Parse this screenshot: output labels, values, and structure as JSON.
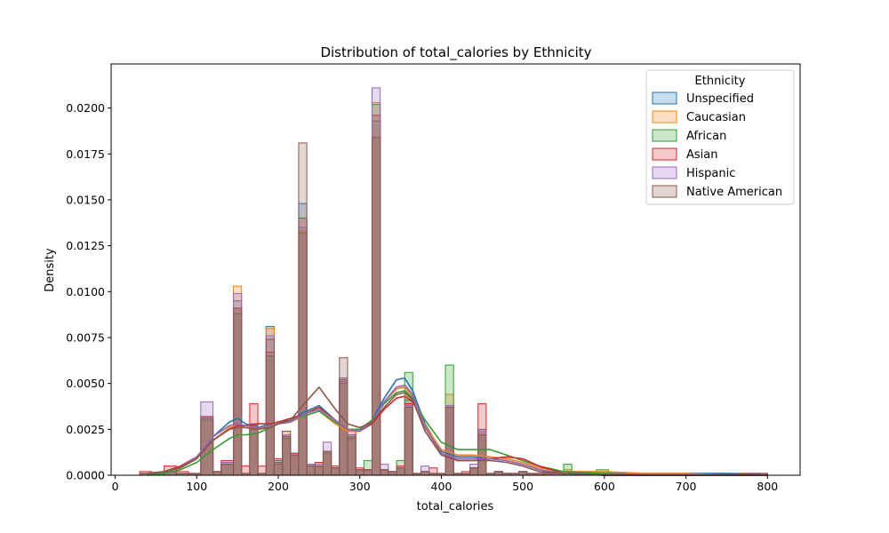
{
  "chart_data": {
    "type": "histogram",
    "title": "Distribution of total_calories by Ethnicity",
    "xlabel": "total_calories",
    "ylabel": "Density",
    "xlim": [
      -5,
      840
    ],
    "ylim": [
      0,
      0.0224
    ],
    "xticks": [
      0,
      100,
      200,
      300,
      400,
      500,
      600,
      700,
      800
    ],
    "yticks": [
      0.0,
      0.0025,
      0.005,
      0.0075,
      0.01,
      0.0125,
      0.015,
      0.0175,
      0.02
    ],
    "ytick_labels": [
      "0.0000",
      "0.0025",
      "0.0050",
      "0.0075",
      "0.0100",
      "0.0125",
      "0.0150",
      "0.0175",
      "0.0200"
    ],
    "legend_title": "Ethnicity",
    "legend_position": "top-right",
    "grid": false,
    "bin_edges": [
      30,
      45,
      60,
      75,
      90,
      105,
      120,
      130,
      145,
      155,
      165,
      175,
      185,
      195,
      205,
      215,
      225,
      235,
      245,
      255,
      265,
      275,
      285,
      295,
      305,
      315,
      325,
      335,
      345,
      355,
      365,
      375,
      385,
      395,
      405,
      415,
      425,
      435,
      445,
      455,
      465,
      475,
      485,
      495,
      505,
      525,
      550,
      560,
      590,
      605,
      640,
      650,
      790,
      800
    ],
    "series": [
      {
        "name": "Unspecified",
        "color": "#1f77b4",
        "values": [
          0.0001,
          0.0001,
          0.0002,
          0.0001,
          0.0001,
          0.0032,
          0.0002,
          0.0007,
          0.0095,
          0.0001,
          0.0028,
          0.0001,
          0.0081,
          0.0008,
          0.0022,
          0.0012,
          0.0148,
          0.0006,
          0.0005,
          0.0013,
          0.0004,
          0.0053,
          0.0022,
          0.0003,
          0.0003,
          0.0193,
          0.0003,
          0.0002,
          0.0004,
          0.0041,
          0.0001,
          0.0002,
          0.0001,
          0.0001,
          0.0038,
          0.0001,
          0.0001,
          0.0004,
          0.0025,
          0.0001,
          0.0002,
          0.0001,
          0.0001,
          0.0002,
          0.0001,
          0.0001,
          0.0001,
          0.0001,
          0.0001,
          0.0001,
          0.0001,
          0.0001,
          0.0001
        ],
        "kde_x": [
          40,
          60,
          80,
          100,
          120,
          140,
          150,
          160,
          175,
          190,
          200,
          215,
          230,
          250,
          270,
          285,
          300,
          315,
          330,
          345,
          355,
          365,
          380,
          400,
          420,
          440,
          460,
          480,
          500,
          520,
          550,
          600,
          650,
          700,
          750,
          800
        ],
        "kde_y": [
          0.0001,
          0.0002,
          0.0004,
          0.0009,
          0.0021,
          0.0029,
          0.0031,
          0.0028,
          0.0026,
          0.0028,
          0.0029,
          0.003,
          0.0034,
          0.0038,
          0.003,
          0.0025,
          0.0025,
          0.003,
          0.0042,
          0.0052,
          0.0053,
          0.0046,
          0.0028,
          0.0013,
          0.001,
          0.001,
          0.0009,
          0.0008,
          0.0006,
          0.0003,
          0.0001,
          0.0001,
          0.0001,
          0.0001,
          0.0001,
          0.0
        ]
      },
      {
        "name": "Caucasian",
        "color": "#ff7f0e",
        "values": [
          0.0001,
          0.0001,
          0.0002,
          0.0001,
          0.0001,
          0.0031,
          0.0002,
          0.0006,
          0.0103,
          0.0001,
          0.0026,
          0.0001,
          0.008,
          0.0006,
          0.0021,
          0.0011,
          0.0133,
          0.0005,
          0.0005,
          0.0012,
          0.0004,
          0.0051,
          0.0021,
          0.0003,
          0.0003,
          0.0203,
          0.0003,
          0.0002,
          0.0004,
          0.0043,
          0.0001,
          0.0002,
          0.0001,
          0.0001,
          0.0044,
          0.0001,
          0.0001,
          0.0004,
          0.0023,
          0.0001,
          0.0002,
          0.0001,
          0.0001,
          0.0002,
          0.0001,
          0.0001,
          0.0003,
          0.0001,
          0.0002,
          0.0001,
          0.0001,
          0.0001,
          0.0001
        ],
        "kde_x": [
          40,
          60,
          80,
          100,
          120,
          140,
          150,
          160,
          175,
          190,
          200,
          215,
          230,
          250,
          270,
          285,
          300,
          315,
          330,
          345,
          355,
          365,
          380,
          400,
          420,
          440,
          460,
          480,
          500,
          520,
          550,
          600,
          650,
          700,
          750,
          800
        ],
        "kde_y": [
          0.0001,
          0.0002,
          0.0004,
          0.0009,
          0.0019,
          0.0026,
          0.0027,
          0.0026,
          0.0025,
          0.0027,
          0.0028,
          0.0029,
          0.0032,
          0.0035,
          0.0028,
          0.0024,
          0.0024,
          0.0029,
          0.004,
          0.0047,
          0.0048,
          0.0043,
          0.0027,
          0.0014,
          0.0011,
          0.0011,
          0.001,
          0.0009,
          0.0007,
          0.0004,
          0.0002,
          0.0002,
          0.0001,
          0.0001,
          0.0,
          0.0
        ]
      },
      {
        "name": "African",
        "color": "#2ca02c",
        "values": [
          0.0001,
          0.0001,
          0.0002,
          0.0001,
          0.0001,
          0.003,
          0.0002,
          0.0006,
          0.0088,
          0.0001,
          0.0025,
          0.0001,
          0.0065,
          0.0006,
          0.002,
          0.0011,
          0.0132,
          0.0005,
          0.0005,
          0.0012,
          0.0004,
          0.005,
          0.002,
          0.0003,
          0.0008,
          0.0202,
          0.0003,
          0.0002,
          0.0008,
          0.0056,
          0.0001,
          0.0002,
          0.0001,
          0.0001,
          0.006,
          0.0001,
          0.0001,
          0.0004,
          0.0022,
          0.0001,
          0.0002,
          0.0001,
          0.0001,
          0.0002,
          0.0001,
          0.0001,
          0.0006,
          0.0001,
          0.0003,
          0.0001,
          0.0001,
          0.0001,
          0.0001
        ],
        "kde_x": [
          40,
          60,
          80,
          100,
          120,
          140,
          150,
          160,
          175,
          190,
          200,
          215,
          230,
          250,
          270,
          285,
          300,
          315,
          330,
          345,
          355,
          365,
          380,
          400,
          420,
          440,
          460,
          480,
          500,
          520,
          550,
          600,
          650,
          700,
          750,
          800
        ],
        "kde_y": [
          0.0,
          0.0001,
          0.0003,
          0.0007,
          0.0014,
          0.002,
          0.0022,
          0.0022,
          0.0023,
          0.0026,
          0.0028,
          0.003,
          0.0032,
          0.0035,
          0.0029,
          0.0025,
          0.0025,
          0.003,
          0.0039,
          0.0045,
          0.0046,
          0.0042,
          0.003,
          0.0018,
          0.0014,
          0.0014,
          0.0014,
          0.0011,
          0.0008,
          0.0005,
          0.0002,
          0.0001,
          0.0,
          0.0,
          0.0,
          0.0
        ]
      },
      {
        "name": "Asian",
        "color": "#d62728",
        "values": [
          0.0002,
          0.0001,
          0.0005,
          0.0002,
          0.0001,
          0.0032,
          0.0002,
          0.0008,
          0.0091,
          0.0005,
          0.0039,
          0.0005,
          0.0067,
          0.0009,
          0.0024,
          0.0012,
          0.014,
          0.0006,
          0.0007,
          0.0013,
          0.0005,
          0.0052,
          0.0024,
          0.0004,
          0.0003,
          0.0196,
          0.0003,
          0.0002,
          0.0005,
          0.0039,
          0.0001,
          0.0002,
          0.0004,
          0.0001,
          0.0037,
          0.0001,
          0.0002,
          0.0004,
          0.0039,
          0.0001,
          0.0002,
          0.0001,
          0.0001,
          0.0002,
          0.0001,
          0.0001,
          0.0001,
          0.0001,
          0.0001,
          0.0001,
          0.0001,
          0.0001,
          0.0001
        ],
        "kde_x": [
          40,
          60,
          80,
          100,
          120,
          140,
          150,
          160,
          175,
          190,
          200,
          215,
          230,
          250,
          270,
          285,
          300,
          315,
          330,
          345,
          355,
          365,
          380,
          400,
          420,
          440,
          460,
          480,
          500,
          520,
          550,
          600,
          650,
          700,
          750,
          800
        ],
        "kde_y": [
          0.0001,
          0.0002,
          0.0005,
          0.001,
          0.0019,
          0.0025,
          0.0027,
          0.0027,
          0.0028,
          0.0028,
          0.0029,
          0.0031,
          0.0033,
          0.0037,
          0.003,
          0.0025,
          0.0024,
          0.0028,
          0.0036,
          0.0042,
          0.0043,
          0.004,
          0.0026,
          0.0012,
          0.0008,
          0.0008,
          0.0009,
          0.001,
          0.0009,
          0.0005,
          0.0001,
          0.0,
          0.0,
          0.0,
          0.0,
          0.0
        ]
      },
      {
        "name": "Hispanic",
        "color": "#9467bd",
        "values": [
          0.0001,
          0.0001,
          0.0002,
          0.0001,
          0.0001,
          0.004,
          0.0002,
          0.0007,
          0.0099,
          0.0001,
          0.0028,
          0.0001,
          0.0076,
          0.0007,
          0.0022,
          0.0011,
          0.0135,
          0.0006,
          0.0006,
          0.0018,
          0.0004,
          0.0051,
          0.0021,
          0.0003,
          0.0003,
          0.0211,
          0.0006,
          0.0002,
          0.0004,
          0.0038,
          0.0001,
          0.0005,
          0.0001,
          0.0001,
          0.0038,
          0.0001,
          0.0001,
          0.0006,
          0.0024,
          0.0001,
          0.0002,
          0.0001,
          0.0001,
          0.0002,
          0.0001,
          0.0001,
          0.0001,
          0.0001,
          0.0001,
          0.0001,
          0.0001,
          0.0001,
          0.0001
        ],
        "kde_x": [
          40,
          60,
          80,
          100,
          120,
          140,
          150,
          160,
          175,
          190,
          200,
          215,
          230,
          250,
          270,
          285,
          300,
          315,
          330,
          345,
          355,
          365,
          380,
          400,
          420,
          440,
          460,
          480,
          500,
          520,
          550,
          600,
          650,
          700,
          750,
          800
        ],
        "kde_y": [
          0.0001,
          0.0002,
          0.0004,
          0.001,
          0.0021,
          0.0027,
          0.0028,
          0.0027,
          0.0026,
          0.0027,
          0.0028,
          0.0029,
          0.0033,
          0.0036,
          0.003,
          0.0025,
          0.0024,
          0.0029,
          0.004,
          0.0048,
          0.0049,
          0.0044,
          0.0026,
          0.0012,
          0.0009,
          0.0009,
          0.0009,
          0.0008,
          0.0006,
          0.0003,
          0.0001,
          0.0,
          0.0,
          0.0,
          0.0,
          0.0
        ]
      },
      {
        "name": "Native American",
        "color": "#8c564b",
        "values": [
          0.0001,
          0.0001,
          0.0002,
          0.0001,
          0.0001,
          0.0031,
          0.0002,
          0.0006,
          0.0091,
          0.0001,
          0.0027,
          0.0001,
          0.0074,
          0.0007,
          0.0021,
          0.0011,
          0.0181,
          0.0005,
          0.0005,
          0.0013,
          0.0004,
          0.0064,
          0.0021,
          0.0003,
          0.0003,
          0.0184,
          0.0003,
          0.0002,
          0.0004,
          0.0037,
          0.0001,
          0.0002,
          0.0001,
          0.0001,
          0.0037,
          0.0001,
          0.0001,
          0.0004,
          0.0022,
          0.0001,
          0.0002,
          0.0001,
          0.0001,
          0.0002,
          0.0001,
          0.0001,
          0.0001,
          0.0001,
          0.0001,
          0.0001,
          0.0001,
          0.0001,
          0.0001
        ],
        "kde_x": [
          40,
          60,
          80,
          100,
          120,
          140,
          150,
          160,
          175,
          190,
          200,
          215,
          230,
          250,
          270,
          285,
          300,
          315,
          330,
          345,
          355,
          365,
          380,
          400,
          420,
          440,
          460,
          480,
          500,
          520,
          550,
          600,
          650,
          700,
          750,
          800
        ],
        "kde_y": [
          0.0001,
          0.0002,
          0.0004,
          0.0009,
          0.0019,
          0.0025,
          0.0026,
          0.0026,
          0.0025,
          0.0026,
          0.0028,
          0.003,
          0.0038,
          0.0048,
          0.0036,
          0.0028,
          0.0026,
          0.0029,
          0.0037,
          0.0044,
          0.0045,
          0.0041,
          0.0024,
          0.0011,
          0.0008,
          0.0008,
          0.0008,
          0.0007,
          0.0005,
          0.0002,
          0.0001,
          0.0,
          0.0,
          0.0,
          0.0,
          0.0
        ]
      }
    ]
  }
}
